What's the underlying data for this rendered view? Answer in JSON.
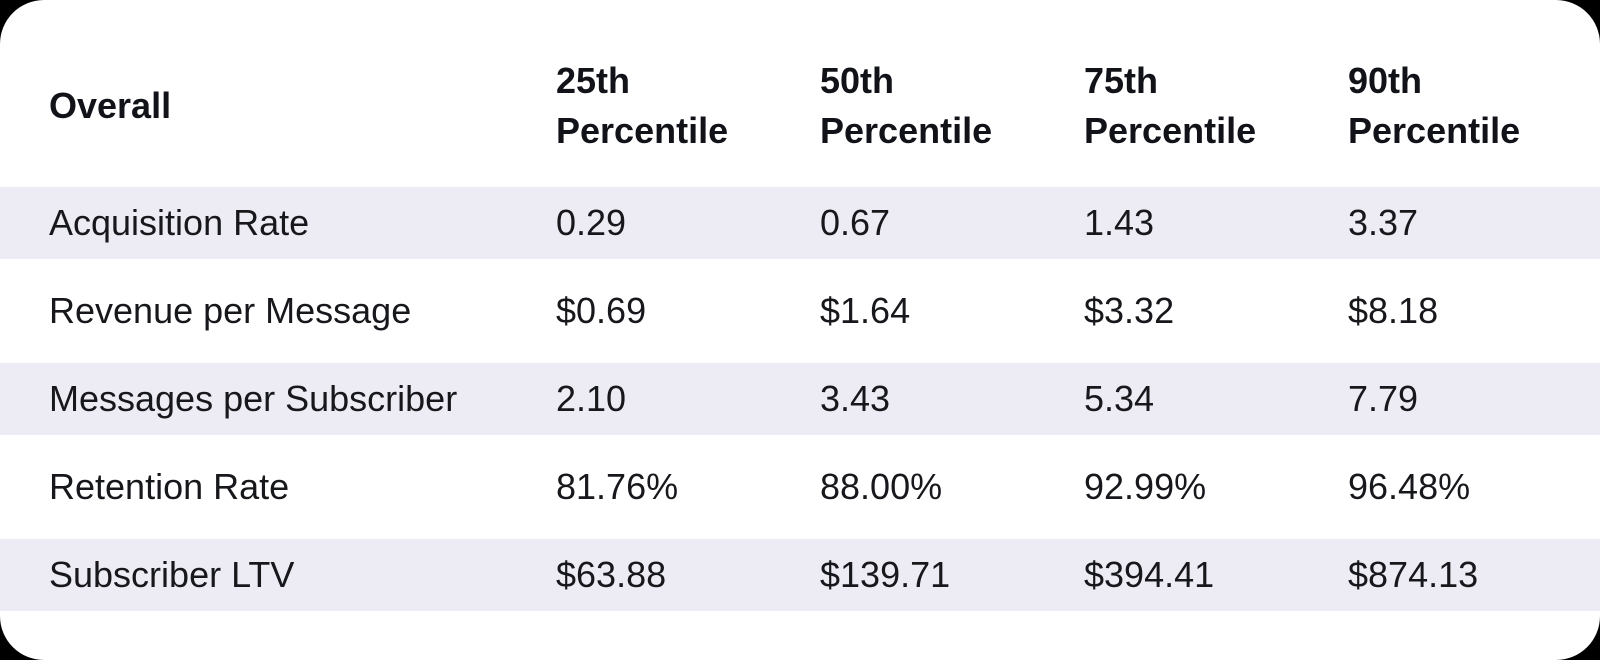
{
  "colors": {
    "page_background": "#000000",
    "card_background": "#ffffff",
    "row_stripe": "#edecf5",
    "text": "#17181c"
  },
  "table": {
    "corner_header": "Overall",
    "column_headers": [
      {
        "line1": "25th",
        "line2": "Percentile"
      },
      {
        "line1": "50th",
        "line2": "Percentile"
      },
      {
        "line1": "75th",
        "line2": "Percentile"
      },
      {
        "line1": "90th",
        "line2": "Percentile"
      }
    ],
    "rows": [
      {
        "label": "Acquisition Rate",
        "values": [
          "0.29",
          "0.67",
          "1.43",
          "3.37"
        ]
      },
      {
        "label": "Revenue per Message",
        "values": [
          "$0.69",
          "$1.64",
          "$3.32",
          "$8.18"
        ]
      },
      {
        "label": "Messages per Subscriber",
        "values": [
          "2.10",
          "3.43",
          "5.34",
          "7.79"
        ]
      },
      {
        "label": "Retention Rate",
        "values": [
          "81.76%",
          "88.00%",
          "92.99%",
          "96.48%"
        ]
      },
      {
        "label": "Subscriber LTV",
        "values": [
          "$63.88",
          "$139.71",
          "$394.41",
          "$874.13"
        ]
      }
    ]
  },
  "chart_data": {
    "type": "table",
    "title": "Overall",
    "columns": [
      "Overall",
      "25th Percentile",
      "50th Percentile",
      "75th Percentile",
      "90th Percentile"
    ],
    "rows": [
      [
        "Acquisition Rate",
        "0.29",
        "0.67",
        "1.43",
        "3.37"
      ],
      [
        "Revenue per Message",
        "$0.69",
        "$1.64",
        "$3.32",
        "$8.18"
      ],
      [
        "Messages per Subscriber",
        "2.10",
        "3.43",
        "5.34",
        "7.79"
      ],
      [
        "Retention Rate",
        "81.76%",
        "88.00%",
        "92.99%",
        "96.48%"
      ],
      [
        "Subscriber LTV",
        "$63.88",
        "$139.71",
        "$394.41",
        "$874.13"
      ]
    ],
    "layout": {
      "striped_row_indexes": [
        0,
        2,
        4
      ],
      "stripe_color": "#edecf5",
      "header_bold": true,
      "grid": "none"
    }
  }
}
